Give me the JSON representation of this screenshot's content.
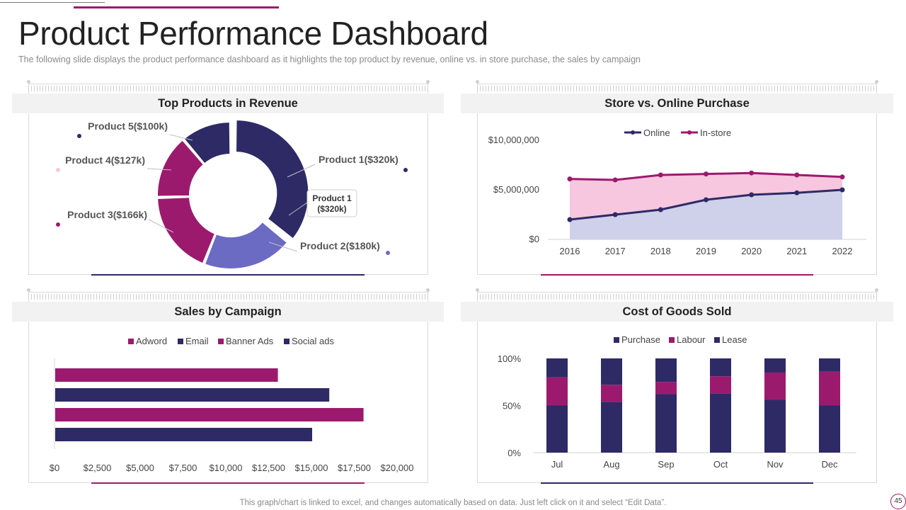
{
  "page": {
    "title": "Product Performance Dashboard",
    "subtitle": "The following  slide displays the product  performance  dashboard  as it highlights the top product by revenue,  online vs.  in store purchase,  the sales by campaign",
    "footer": "This graph/chart is linked to excel,  and changes automatically based on data. Just left click on it and select “Edit Data”.",
    "page_number": "45"
  },
  "colors": {
    "navy": "#2e2a66",
    "magenta": "#9c1a6e",
    "periwinkle": "#6b6bc4",
    "pink": "#f7c6df",
    "lavender": "#cfd0ea"
  },
  "panels": {
    "revenue": {
      "title": "Top Products in Revenue"
    },
    "purchase": {
      "title": "Store vs. Online Purchase"
    },
    "campaign": {
      "title": "Sales by Campaign"
    },
    "cogs": {
      "title": "Cost of Goods Sold"
    }
  },
  "chart_data": [
    {
      "type": "pie",
      "title": "Top Products in Revenue",
      "categories": [
        "Product 1",
        "Product 2",
        "Product 3",
        "Product 4",
        "Product 5"
      ],
      "values": [
        320,
        180,
        166,
        127,
        100
      ],
      "labels": [
        "Product 1($320k)",
        "Product 2($180k)",
        "Product 3($166k)",
        "Product 4($127k)",
        "Product 5($100k)"
      ],
      "colors": [
        "#2e2a66",
        "#6b6bc4",
        "#9c1a6e",
        "#9c1a6e",
        "#2e2a66"
      ],
      "callout": "Product 1\n($320k)",
      "donut": true
    },
    {
      "type": "area",
      "title": "Store vs. Online Purchase",
      "x": [
        "2016",
        "2017",
        "2018",
        "2019",
        "2020",
        "2021",
        "2022"
      ],
      "series": [
        {
          "name": "Online",
          "values": [
            2000000,
            2500000,
            3000000,
            4000000,
            4500000,
            4700000,
            5000000
          ]
        },
        {
          "name": "In-store",
          "values": [
            6100000,
            6000000,
            6500000,
            6600000,
            6700000,
            6500000,
            6300000
          ]
        }
      ],
      "ylim": [
        0,
        10000000
      ],
      "yticks": [
        0,
        5000000,
        10000000
      ],
      "ytick_labels": [
        "$0",
        "$5,000,000",
        "$10,000,000"
      ]
    },
    {
      "type": "bar",
      "orientation": "horizontal",
      "title": "Sales by Campaign",
      "categories": [
        "Adword",
        "Email",
        "Banner Ads",
        "Social ads"
      ],
      "values": [
        13000,
        16000,
        18000,
        15000
      ],
      "colors": [
        "#9c1a6e",
        "#2e2a66",
        "#9c1a6e",
        "#2e2a66"
      ],
      "xlim": [
        0,
        20000
      ],
      "xticks": [
        0,
        2500,
        5000,
        7500,
        10000,
        12500,
        15000,
        17500,
        20000
      ],
      "xtick_labels": [
        "$0",
        "$2,500",
        "$5,000",
        "$7,500",
        "$10,000",
        "$12,500",
        "$15,000",
        "$17,500",
        "$20,000"
      ]
    },
    {
      "type": "bar",
      "stacked": true,
      "percent": true,
      "title": "Cost of Goods Sold",
      "categories": [
        "Jul",
        "Aug",
        "Sep",
        "Oct",
        "Nov",
        "Dec"
      ],
      "series": [
        {
          "name": "Purchase",
          "values": [
            50,
            54,
            62,
            63,
            56,
            50
          ]
        },
        {
          "name": "Labour",
          "values": [
            30,
            18,
            13,
            18,
            29,
            36
          ]
        },
        {
          "name": "Lease",
          "values": [
            20,
            28,
            25,
            19,
            15,
            14
          ]
        }
      ],
      "colors": [
        "#2e2a66",
        "#9c1a6e",
        "#2e2a66"
      ],
      "ylim": [
        0,
        100
      ],
      "ytick_labels": [
        "0%",
        "50%",
        "100%"
      ]
    }
  ]
}
